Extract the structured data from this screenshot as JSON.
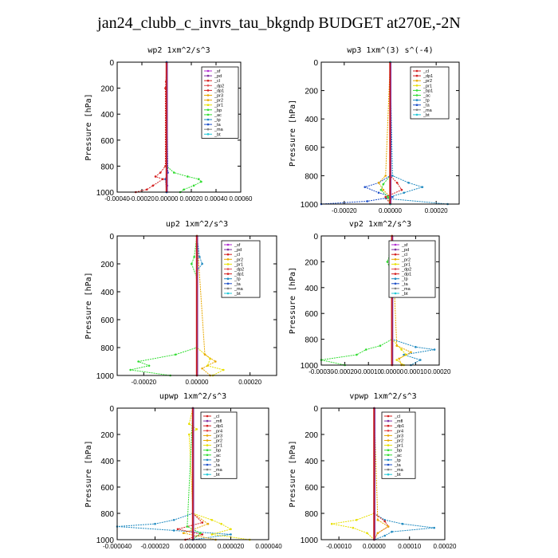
{
  "title": "jan24_clubb_c_invrs_tau_bkgndp  BUDGET at270E,-2N",
  "chart_data": [
    {
      "type": "line",
      "title": "wp2  1xm^2/s^3",
      "ylabel": "Pressure [hPa]",
      "xlim": [
        -0.0004,
        0.0006
      ],
      "ylim": [
        1000,
        0
      ],
      "x_ticks": [
        "-0.00040",
        "-0.00020",
        "0.00000",
        "0.00020",
        "0.00040",
        "0.00060"
      ],
      "y_ticks": [
        "0",
        "200",
        "400",
        "600",
        "800",
        "1000"
      ],
      "legend": [
        "_sf",
        "_pd",
        "_cl",
        "_dp2",
        "_dp1",
        "_pr3",
        "_pr2",
        "_pr1",
        "_bp",
        "_ac",
        "_tp",
        "_ta",
        "_ma",
        "_bt"
      ],
      "series": [
        {
          "name": "_cl",
          "color": "#d42020",
          "pressure": [
            0,
            150,
            200,
            800,
            850,
            880,
            900,
            950,
            980,
            1000
          ],
          "values": [
            0,
            -5e-06,
            -1e-05,
            -1e-05,
            -5e-05,
            -9e-05,
            -3e-05,
            -0.00011,
            -0.00016,
            -0.00025
          ]
        },
        {
          "name": "_pr1",
          "color": "#33dd33",
          "pressure": [
            0,
            800,
            850,
            880,
            900,
            920,
            950,
            980,
            1000
          ],
          "values": [
            0,
            0,
            6e-05,
            0.00017,
            0.00026,
            0.00028,
            0.00022,
            0.00014,
            0.00011
          ]
        },
        {
          "name": "_pd",
          "color": "#b02ad0",
          "pressure": [
            0,
            850,
            900,
            950,
            1000
          ],
          "values": [
            0,
            8e-06,
            -8e-06,
            5e-06,
            0
          ]
        },
        {
          "name": "_bt",
          "color": "#20c8d8",
          "pressure": [
            0,
            900,
            1000
          ],
          "values": [
            0,
            0,
            0
          ]
        },
        {
          "name": "_ta",
          "color": "#1e50c8",
          "pressure": [
            0,
            850,
            900,
            1000
          ],
          "values": [
            0,
            1e-05,
            -1e-05,
            0
          ]
        }
      ]
    },
    {
      "type": "line",
      "title": "wp3  1xm^(3) s^(-4)",
      "ylabel": "Pressure [hPa]",
      "xlim": [
        -0.0003,
        0.0003
      ],
      "ylim": [
        1000,
        0
      ],
      "x_ticks": [
        "-0.00020",
        "0.00000",
        "0.00020"
      ],
      "y_ticks": [
        "0",
        "200",
        "400",
        "600",
        "800",
        "1000"
      ],
      "legend": [
        "_cl",
        "_dp1",
        "_pr2",
        "_pr1",
        "_bp1",
        "_ac",
        "_tp",
        "_ta",
        "_ma",
        "_bt"
      ],
      "series": [
        {
          "name": "_ta",
          "color": "#1e50c8",
          "pressure": [
            0,
            800,
            850,
            880,
            920,
            950,
            980,
            1000
          ],
          "values": [
            0,
            0,
            -5e-05,
            -0.00011,
            -5e-05,
            1e-05,
            -0.0001,
            -0.0003
          ]
        },
        {
          "name": "_tp",
          "color": "#1f8ac0",
          "pressure": [
            0,
            800,
            850,
            880,
            920,
            960,
            1000
          ],
          "values": [
            0,
            1e-05,
            8e-05,
            0.00014,
            6e-05,
            -2e-05,
            0.00025
          ]
        },
        {
          "name": "_pr2",
          "color": "#e8a800",
          "pressure": [
            0,
            800,
            850,
            900,
            950,
            1000
          ],
          "values": [
            0,
            -2e-05,
            -5e-05,
            -3e-05,
            0,
            0
          ]
        },
        {
          "name": "_cl",
          "color": "#d42020",
          "pressure": [
            0,
            800,
            850,
            900,
            950,
            1000
          ],
          "values": [
            0,
            0,
            3e-05,
            5e-05,
            -2e-05,
            0
          ]
        },
        {
          "name": "_ac",
          "color": "#33dd33",
          "pressure": [
            0,
            800,
            860,
            900,
            950,
            1000
          ],
          "values": [
            0,
            0,
            -3e-05,
            -4e-05,
            -1e-05,
            0
          ]
        },
        {
          "name": "_bt",
          "color": "#20c8d8",
          "pressure": [
            0,
            1000
          ],
          "values": [
            0,
            0
          ]
        }
      ]
    },
    {
      "type": "line",
      "title": "up2  1xm^2/s^3",
      "ylabel": "Pressure [hPa]",
      "xlim": [
        -0.0003,
        0.0003
      ],
      "ylim": [
        1000,
        0
      ],
      "x_ticks": [
        "-0.00020",
        "0.00000",
        "0.00020"
      ],
      "y_ticks": [
        "0",
        "200",
        "400",
        "600",
        "800",
        "1000"
      ],
      "legend": [
        "_sf",
        "_pd",
        "_cl",
        "_pr2",
        "_pr1",
        "_dp2",
        "_dp1",
        "_tp",
        "_ta",
        "_ma",
        "_bt"
      ],
      "series": [
        {
          "name": "_pr1",
          "color": "#33dd33",
          "pressure": [
            0,
            150,
            200,
            300,
            800,
            850,
            900,
            930,
            960,
            1000
          ],
          "values": [
            0,
            -1e-05,
            -2e-05,
            0,
            0,
            -8e-05,
            -0.00022,
            -0.00018,
            -0.00025,
            -0.0001
          ]
        },
        {
          "name": "_pr2",
          "color": "#e8e000",
          "pressure": [
            0,
            800,
            880,
            930,
            960,
            1000
          ],
          "values": [
            0,
            0,
            5e-05,
            4e-05,
            0.0001,
            6e-05
          ]
        },
        {
          "name": "_dp2",
          "color": "#e8a800",
          "pressure": [
            0,
            850,
            900,
            950,
            1000
          ],
          "values": [
            0,
            3e-05,
            7e-05,
            2e-05,
            5e-05
          ]
        },
        {
          "name": "_tp",
          "color": "#1f8ac0",
          "pressure": [
            0,
            150,
            200,
            250,
            800,
            1000
          ],
          "values": [
            0,
            1e-05,
            2e-05,
            0,
            0,
            0
          ]
        },
        {
          "name": "_cl",
          "color": "#d42020",
          "pressure": [
            0,
            1000
          ],
          "values": [
            0,
            0
          ]
        }
      ]
    },
    {
      "type": "line",
      "title": "vp2  1xm^2/s^3",
      "ylabel": "Pressure [hPa]",
      "xlim": [
        -0.0003,
        0.0002
      ],
      "ylim": [
        1000,
        0
      ],
      "x_ticks": [
        "-0.00030",
        "-0.00020",
        "-0.00010",
        "0.00000",
        "0.00010",
        "0.00020"
      ],
      "y_ticks": [
        "0",
        "200",
        "400",
        "600",
        "800",
        "1000"
      ],
      "legend": [
        "_sf",
        "_pd",
        "_cl",
        "_pr2",
        "_pr1",
        "_dp2",
        "_dp1",
        "_tp",
        "_ta",
        "_ma",
        "_bt"
      ],
      "series": [
        {
          "name": "_pr1",
          "color": "#33dd33",
          "pressure": [
            0,
            150,
            200,
            300,
            800,
            850,
            880,
            920,
            960,
            1000
          ],
          "values": [
            0,
            -1e-05,
            -2e-05,
            0,
            0,
            -5e-05,
            -0.00011,
            -0.00015,
            -0.0003,
            -0.0002
          ]
        },
        {
          "name": "_tp",
          "color": "#1f8ac0",
          "pressure": [
            0,
            800,
            860,
            880,
            920,
            960,
            1000
          ],
          "values": [
            0,
            0,
            0.0001,
            0.00018,
            5e-05,
            0.00012,
            8e-05
          ]
        },
        {
          "name": "_pr2",
          "color": "#e8e000",
          "pressure": [
            0,
            800,
            880,
            920,
            960,
            1000
          ],
          "values": [
            0,
            0,
            4e-05,
            6e-05,
            2e-05,
            5e-05
          ]
        },
        {
          "name": "_dp2",
          "color": "#e8a800",
          "pressure": [
            0,
            850,
            900,
            950,
            1000
          ],
          "values": [
            0,
            2e-05,
            8e-05,
            3e-05,
            4e-05
          ]
        },
        {
          "name": "_cl",
          "color": "#d42020",
          "pressure": [
            0,
            1000
          ],
          "values": [
            0,
            0
          ]
        }
      ]
    },
    {
      "type": "line",
      "title": "upwp  1xm^2/s^3",
      "ylabel": "Pressure [hPa]",
      "xlim": [
        -4e-05,
        4e-05
      ],
      "ylim": [
        1000,
        0
      ],
      "x_ticks": [
        "-0.000040",
        "-0.000020",
        "0.000000",
        "0.000020",
        "0.000040"
      ],
      "y_ticks": [
        "0",
        "200",
        "400",
        "600",
        "800",
        "1000"
      ],
      "legend": [
        "_cl",
        "_mfl",
        "_dp1",
        "_pr4",
        "_pr3",
        "_pr2",
        "_pr1",
        "_bp",
        "_ac",
        "_tp",
        "_ta",
        "_ma",
        "_bt"
      ],
      "series": [
        {
          "name": "_tp",
          "color": "#1f8ac0",
          "pressure": [
            0,
            800,
            850,
            880,
            900,
            930,
            960,
            1000
          ],
          "values": [
            0,
            0,
            -1e-05,
            -2e-05,
            -4e-05,
            -1e-05,
            2e-05,
            0
          ]
        },
        {
          "name": "_pr2",
          "color": "#e8e000",
          "pressure": [
            0,
            120,
            160,
            200,
            800,
            850,
            880,
            920,
            960,
            1000
          ],
          "values": [
            0,
            -2e-06,
            2e-06,
            -2e-06,
            0,
            1e-05,
            1.5e-05,
            2e-05,
            1e-05,
            3e-05
          ]
        },
        {
          "name": "_pr1",
          "color": "#e8a800",
          "pressure": [
            0,
            800,
            880,
            950,
            1000
          ],
          "values": [
            0,
            0,
            8e-06,
            -5e-06,
            1.2e-05
          ]
        },
        {
          "name": "_cl",
          "color": "#d42020",
          "pressure": [
            0,
            800,
            870,
            920,
            960,
            1000
          ],
          "values": [
            0,
            0,
            5e-06,
            -8e-06,
            5e-06,
            -4e-06
          ]
        },
        {
          "name": "_ac",
          "color": "#33dd33",
          "pressure": [
            0,
            900,
            950,
            1000
          ],
          "values": [
            0,
            -3e-06,
            4e-06,
            0
          ]
        },
        {
          "name": "_mfl",
          "color": "#8030a0",
          "pressure": [
            0,
            1000
          ],
          "values": [
            0,
            0
          ]
        }
      ]
    },
    {
      "type": "line",
      "title": "vpwp  1xm^2/s^3",
      "ylabel": "Pressure [hPa]",
      "xlim": [
        -0.00015,
        0.0002
      ],
      "ylim": [
        1000,
        0
      ],
      "x_ticks": [
        "-0.00010",
        "0.00000",
        "0.00010",
        "0.00020"
      ],
      "y_ticks": [
        "0",
        "200",
        "400",
        "600",
        "800",
        "1000"
      ],
      "legend": [
        "_cl",
        "_mfl",
        "_dp1",
        "_pr4",
        "_pr3",
        "_pr2",
        "_pr1",
        "_bp",
        "_ac",
        "_tp",
        "_ta",
        "_ma",
        "_bt"
      ],
      "series": [
        {
          "name": "_tp",
          "color": "#1f8ac0",
          "pressure": [
            0,
            800,
            850,
            880,
            910,
            940,
            970,
            1000
          ],
          "values": [
            0,
            0,
            3e-05,
            8e-05,
            0.00017,
            5e-05,
            3e-05,
            0
          ]
        },
        {
          "name": "_pr2",
          "color": "#e8e000",
          "pressure": [
            0,
            800,
            850,
            880,
            910,
            950,
            1000
          ],
          "values": [
            0,
            0,
            -5e-05,
            -0.00012,
            -6e-05,
            -2e-05,
            0
          ]
        },
        {
          "name": "_cl",
          "color": "#d42020",
          "pressure": [
            0,
            800,
            860,
            900,
            950,
            1000
          ],
          "values": [
            0,
            0,
            3e-05,
            4e-05,
            1e-05,
            0
          ]
        },
        {
          "name": "_pr1",
          "color": "#e8a800",
          "pressure": [
            0,
            850,
            900,
            950,
            1000
          ],
          "values": [
            0,
            1e-05,
            4e-05,
            1e-05,
            0
          ]
        },
        {
          "name": "_mfl",
          "color": "#8030a0",
          "pressure": [
            0,
            1000
          ],
          "values": [
            0,
            0
          ]
        }
      ]
    }
  ]
}
